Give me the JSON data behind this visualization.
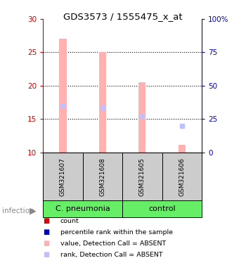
{
  "title": "GDS3573 / 1555475_x_at",
  "samples": [
    "GSM321607",
    "GSM321608",
    "GSM321605",
    "GSM321606"
  ],
  "ylim_left": [
    10,
    30
  ],
  "ylim_right": [
    0,
    100
  ],
  "yticks_left": [
    10,
    15,
    20,
    25,
    30
  ],
  "yticks_right": [
    0,
    25,
    50,
    75,
    100
  ],
  "yticklabels_right": [
    "0",
    "25",
    "50",
    "75",
    "100%"
  ],
  "bar_absent_color": "#ffb0b0",
  "rank_absent_color": "#c0c0ff",
  "bar_values": [
    27.0,
    25.0,
    20.5,
    11.2
  ],
  "bar_bottom": 10,
  "rank_values": [
    17.0,
    16.7,
    15.5,
    14.0
  ],
  "dotted_yticks": [
    15,
    20,
    25
  ],
  "bar_width": 0.18,
  "legend_items": [
    {
      "label": "count",
      "color": "#dd0000"
    },
    {
      "label": "percentile rank within the sample",
      "color": "#0000cc"
    },
    {
      "label": "value, Detection Call = ABSENT",
      "color": "#ffb0b0"
    },
    {
      "label": "rank, Detection Call = ABSENT",
      "color": "#c0c0ff"
    }
  ],
  "group_label_color": "#66ee66",
  "sample_bg_color": "#cccccc",
  "infection_color": "#888888",
  "left_axis_color": "#cc0000",
  "right_axis_color": "#0000cc"
}
